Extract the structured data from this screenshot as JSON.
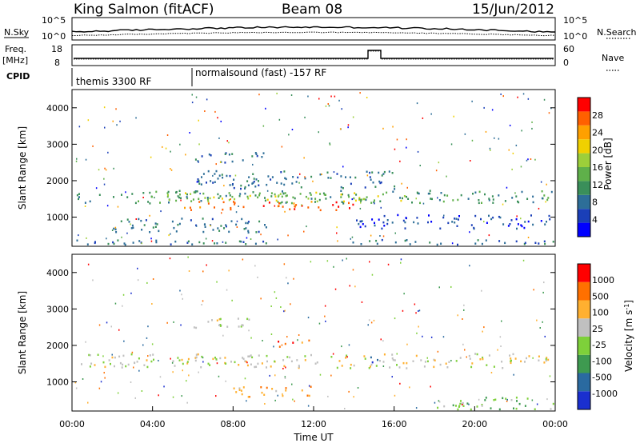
{
  "header": {
    "station": "King Salmon (fitACF)",
    "beam": "Beam 08",
    "date": "15/Jun/2012"
  },
  "top_panels": {
    "nsky_label": "N.Sky",
    "nsky_ticks": [
      "10^5",
      "10^0"
    ],
    "nsearch_label": "N.Search",
    "nsearch_ticks": [
      "10^5",
      "10^0"
    ],
    "freq_label_1": "Freq.",
    "freq_label_2": "[MHz]",
    "freq_ticks": [
      "18",
      "8"
    ],
    "nave_label": "Nave",
    "nave_ticks": [
      "60",
      "0"
    ],
    "cpid_label": "CPID",
    "cpid_segments": [
      {
        "label": "themis 3300 RF",
        "start_hour": 0,
        "end_hour": 6
      },
      {
        "label": "normalsound (fast) -157 RF",
        "start_hour": 6,
        "end_hour": 24
      }
    ]
  },
  "power_colorbar": {
    "label": "Power [dB]",
    "ticks": [
      "28",
      "24",
      "20",
      "16",
      "12",
      "8",
      "4"
    ],
    "colors": [
      "#0000ff",
      "#1a3fb8",
      "#2d6e98",
      "#3a8f5a",
      "#5fb04a",
      "#9ccf3a",
      "#f0d000",
      "#ffa000",
      "#ff6000",
      "#ff0000"
    ]
  },
  "velocity_colorbar": {
    "label": "Velocity [m s",
    "label_sup": "-1",
    "label_end": "]",
    "ticks": [
      "1000",
      "500",
      "100",
      "25",
      "-25",
      "-100",
      "-500",
      "-1000"
    ],
    "colors": [
      "#1a2fcf",
      "#2a6aa0",
      "#3e9a50",
      "#7ed03a",
      "#c0c0c0",
      "#ffb030",
      "#ff7000",
      "#ff0000"
    ]
  },
  "chart_data": [
    {
      "type": "heatmap",
      "panel": "power",
      "ylabel": "Slant Range [km]",
      "ylim": [
        200,
        4500
      ],
      "yticks": [
        "1000",
        "2000",
        "3000",
        "4000"
      ],
      "xlim": [
        0,
        24
      ],
      "xtick_labels": [
        "00:00",
        "04:00",
        "08:00",
        "12:00",
        "16:00",
        "20:00",
        "00:00"
      ],
      "scatter_bands": [
        {
          "t0": 0.2,
          "t1": 23.9,
          "r0": 1400,
          "r1": 1750,
          "level": 3
        },
        {
          "t0": 5.5,
          "t1": 14.0,
          "r0": 1200,
          "r1": 1450,
          "level": 8
        },
        {
          "t0": 4.5,
          "t1": 16.5,
          "r0": 1450,
          "r1": 1700,
          "level": 5
        },
        {
          "t0": 6.0,
          "t1": 9.5,
          "r0": 2500,
          "r1": 2800,
          "level": 2
        },
        {
          "t0": 6.0,
          "t1": 16.0,
          "r0": 1800,
          "r1": 2300,
          "level": 2
        },
        {
          "t0": 2.0,
          "t1": 10.0,
          "r0": 600,
          "r1": 1000,
          "level": 2
        },
        {
          "t0": 14.0,
          "t1": 23.8,
          "r0": 700,
          "r1": 1100,
          "level": 1
        },
        {
          "t0": 0.2,
          "t1": 23.9,
          "r0": 200,
          "r1": 400,
          "level": 2
        }
      ]
    },
    {
      "type": "heatmap",
      "panel": "velocity",
      "ylabel": "Slant Range [km]",
      "xlabel": "Time UT",
      "ylim": [
        200,
        4500
      ],
      "yticks": [
        "1000",
        "2000",
        "3000",
        "4000"
      ],
      "xlim": [
        0,
        24
      ],
      "xtick_labels": [
        "00:00",
        "04:00",
        "08:00",
        "12:00",
        "16:00",
        "20:00",
        "00:00"
      ],
      "scatter_bands": [
        {
          "t0": 0.2,
          "t1": 23.9,
          "r0": 1400,
          "r1": 1800,
          "level": 4
        },
        {
          "t0": 10.0,
          "t1": 11.0,
          "r0": 1950,
          "r1": 2150,
          "level": 7
        },
        {
          "t0": 11.3,
          "t1": 11.9,
          "r0": 2000,
          "r1": 2200,
          "level": 6
        },
        {
          "t0": 14.7,
          "t1": 15.2,
          "r0": 1550,
          "r1": 1900,
          "level": 0
        },
        {
          "t0": 8.0,
          "t1": 12.0,
          "r0": 600,
          "r1": 900,
          "level": 5
        },
        {
          "t0": 18.0,
          "t1": 23.9,
          "r0": 250,
          "r1": 600,
          "level": 3
        },
        {
          "t0": 6.0,
          "t1": 9.5,
          "r0": 2500,
          "r1": 2800,
          "level": 4
        }
      ]
    }
  ]
}
